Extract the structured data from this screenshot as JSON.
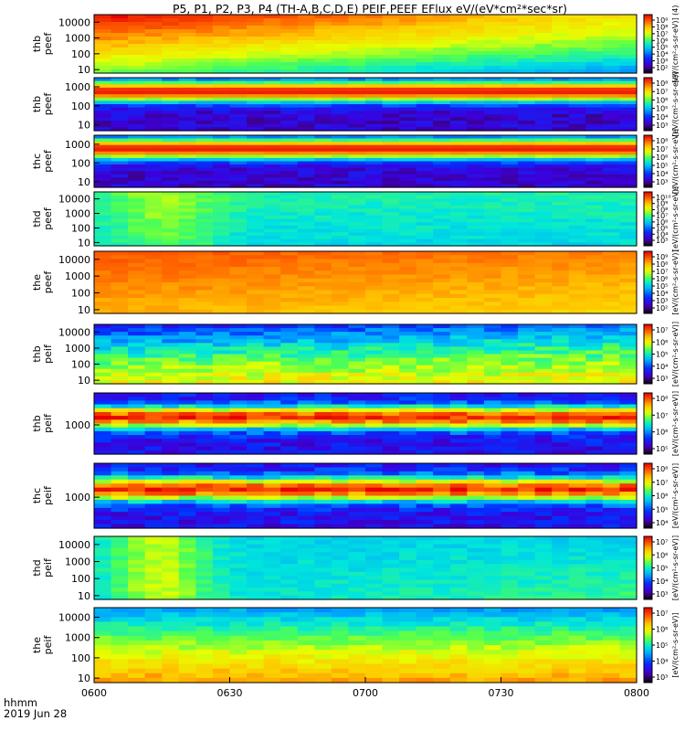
{
  "chart_data": {
    "type": "heatmap",
    "title": "P5, P1, P2, P3, P4 (TH-A,B,C,D,E) PEIF,PEEF EFlux eV/(eV*cm²*sec*sr)",
    "time_axis": {
      "label_line1": "hhmm",
      "label_line2": "2019 Jun 28",
      "range": [
        "0600",
        "0800"
      ],
      "ticks": [
        "0600",
        "0630",
        "0700",
        "0730",
        "0800"
      ]
    },
    "colorbar_label": "[eV/(cm²-s-sr-eV)]",
    "panels": [
      {
        "id": "thb_peef_top",
        "probe": "thb",
        "product": "peef",
        "ylabel": [
          "thb",
          "peef"
        ],
        "yscale": "log",
        "yrange": [
          6,
          30000
        ],
        "yticks": [
          "10",
          "100",
          "1000",
          "10000"
        ],
        "cbar_log_range": [
          2,
          9
        ],
        "cbar_ticks": [
          "10⁹",
          "10⁸",
          "10⁷",
          "10⁶",
          "10⁵",
          "10⁴",
          "10³",
          "10²"
        ],
        "cbar_title": "[eV/(cm²-s-sr-eV)] (4)"
      },
      {
        "id": "thb_peef",
        "probe": "thb",
        "product": "peef",
        "ylabel": [
          "thb",
          "peef"
        ],
        "yscale": "log",
        "yrange": [
          5,
          3000
        ],
        "yticks": [
          "10",
          "100",
          "1000"
        ],
        "cbar_log_range": [
          3,
          8
        ],
        "cbar_ticks": [
          "10⁸",
          "10⁷",
          "10⁶",
          "10⁵",
          "10⁴",
          "10³"
        ],
        "cbar_title": "[eV/(cm²-s-sr-eV)]"
      },
      {
        "id": "thc_peef",
        "probe": "thc",
        "product": "peef",
        "ylabel": [
          "thc",
          "peef"
        ],
        "yscale": "log",
        "yrange": [
          5,
          3000
        ],
        "yticks": [
          "10",
          "100",
          "1000"
        ],
        "cbar_log_range": [
          3,
          8
        ],
        "cbar_ticks": [
          "10⁸",
          "10⁷",
          "10⁶",
          "10⁵",
          "10⁴",
          "10³"
        ],
        "cbar_title": "[eV/(cm²-s-sr-eV)]"
      },
      {
        "id": "thd_peef",
        "probe": "thd",
        "product": "peef",
        "ylabel": [
          "thd",
          "peef"
        ],
        "yscale": "log",
        "yrange": [
          6,
          30000
        ],
        "yticks": [
          "10",
          "100",
          "1000",
          "10000"
        ],
        "cbar_log_range": [
          3,
          10
        ],
        "cbar_ticks": [
          "10¹⁰",
          "10⁹",
          "10⁸",
          "10⁷",
          "10⁶",
          "10⁵",
          "10⁴",
          "10³"
        ],
        "cbar_title": "[eV/(cm²-s-sr-eV)]"
      },
      {
        "id": "the_peef",
        "probe": "the",
        "product": "peef",
        "ylabel": [
          "the",
          "peef"
        ],
        "yscale": "log",
        "yrange": [
          6,
          30000
        ],
        "yticks": [
          "10",
          "100",
          "1000",
          "10000"
        ],
        "cbar_log_range": [
          2,
          9
        ],
        "cbar_ticks": [
          "10⁹",
          "10⁸",
          "10⁷",
          "10⁶",
          "10⁵",
          "10⁴",
          "10³",
          "10²"
        ],
        "cbar_title": "[eV/(cm²-s-sr-eV)]"
      },
      {
        "id": "thb_peif_top",
        "probe": "thb",
        "product": "peif",
        "ylabel": [
          "thb",
          "peif"
        ],
        "yscale": "log",
        "yrange": [
          6,
          30000
        ],
        "yticks": [
          "10",
          "100",
          "1000",
          "10000"
        ],
        "cbar_log_range": [
          3,
          7.5
        ],
        "cbar_ticks": [
          "10⁷",
          "10⁶",
          "10⁵",
          "10⁴",
          "10³"
        ],
        "cbar_title": "[eV/(cm²-s-sr-eV)]"
      },
      {
        "id": "thb_peif",
        "probe": "thb",
        "product": "peif",
        "ylabel": [
          "thb",
          "peif"
        ],
        "yscale": "log",
        "yrange": [
          150,
          8000
        ],
        "yticks": [
          "1000"
        ],
        "cbar_log_range": [
          4.6,
          8
        ],
        "cbar_ticks": [
          "10⁸",
          "10⁷",
          "10⁶",
          "10⁵"
        ],
        "cbar_title": "[eV/(cm²-s-sr-eV)]"
      },
      {
        "id": "thc_peif",
        "probe": "thc",
        "product": "peif",
        "ylabel": [
          "thc",
          "peif"
        ],
        "yscale": "log",
        "yrange": [
          150,
          8000
        ],
        "yticks": [
          "1000"
        ],
        "cbar_log_range": [
          3.6,
          8
        ],
        "cbar_ticks": [
          "10⁸",
          "10⁷",
          "10⁶",
          "10⁵",
          "10⁴"
        ],
        "cbar_title": "[eV/(cm²-s-sr-eV)]"
      },
      {
        "id": "thd_peif",
        "probe": "thd",
        "product": "peif",
        "ylabel": [
          "thd",
          "peif"
        ],
        "yscale": "log",
        "yrange": [
          6,
          30000
        ],
        "yticks": [
          "10",
          "100",
          "1000",
          "10000"
        ],
        "cbar_log_range": [
          3,
          7.5
        ],
        "cbar_ticks": [
          "10⁷",
          "10⁶",
          "10⁵",
          "10⁴",
          "10³"
        ],
        "cbar_title": "[eV/(cm²-s-sr-eV)]"
      },
      {
        "id": "the_peif",
        "probe": "the",
        "product": "peif",
        "ylabel": [
          "the",
          "peif"
        ],
        "yscale": "log",
        "yrange": [
          6,
          30000
        ],
        "yticks": [
          "10",
          "100",
          "1000",
          "10000"
        ],
        "cbar_log_range": [
          3,
          7.5
        ],
        "cbar_ticks": [
          "10⁷",
          "10⁶",
          "10⁵",
          "10⁴",
          "10³"
        ],
        "cbar_title": "[eV/(cm²-s-sr-eV)]"
      }
    ]
  }
}
